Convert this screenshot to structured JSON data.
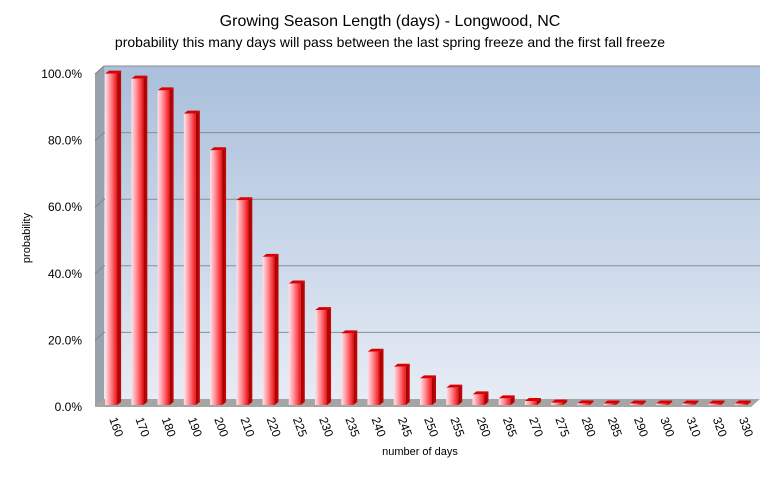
{
  "chart_data": {
    "type": "bar",
    "title": "Growing  Season  Length  (days) - Longwood,  NC",
    "subtitle": "probability this many days will pass between the last spring freeze and the first fall freeze",
    "xlabel": "number of days",
    "ylabel": "probability",
    "ylim": [
      0,
      100
    ],
    "yticks": [
      0,
      20,
      40,
      60,
      80,
      100
    ],
    "ytick_labels": [
      "0.0%",
      "20.0%",
      "40.0%",
      "60.0%",
      "80.0%",
      "100.0%"
    ],
    "categories": [
      "160",
      "170",
      "180",
      "190",
      "200",
      "210",
      "220",
      "225",
      "230",
      "235",
      "240",
      "245",
      "250",
      "255",
      "260",
      "265",
      "270",
      "275",
      "280",
      "285",
      "290",
      "300",
      "310",
      "320",
      "330"
    ],
    "values": [
      99.5,
      98.0,
      94.5,
      87.5,
      76.5,
      61.5,
      44.5,
      36.5,
      28.5,
      21.5,
      16.0,
      11.5,
      8.0,
      5.2,
      3.2,
      2.0,
      1.2,
      0.7,
      0.5,
      0.4,
      0.3,
      0.3,
      0.3,
      0.3,
      0.3
    ],
    "grid": true,
    "colors": {
      "bar_dark": "#ee1111",
      "bar_light": "#ffd0d6",
      "plot_top": "#a9bfdb",
      "plot_bottom": "#e6ecf5",
      "side_wall": "#9aa1aa",
      "floor": "#a5a5a5",
      "grid": "#8c8c8c"
    }
  }
}
